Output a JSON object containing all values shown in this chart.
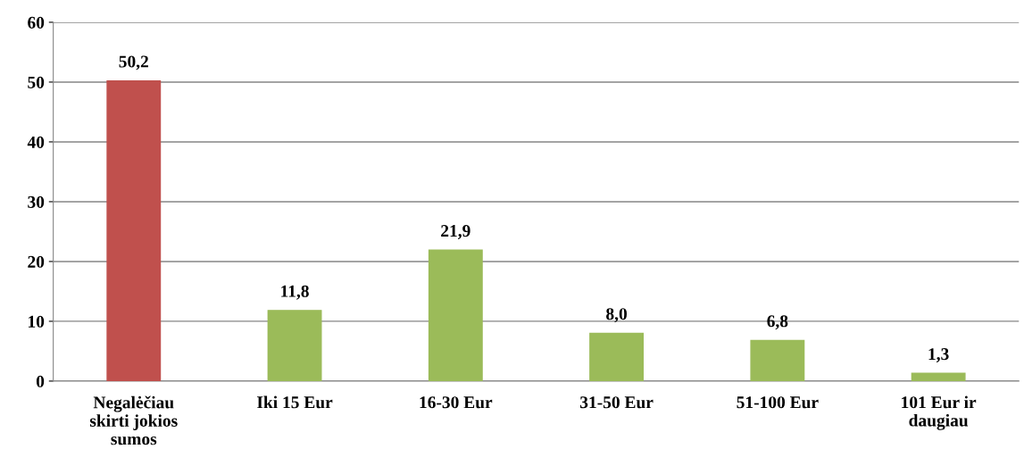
{
  "chart_data": {
    "type": "bar",
    "categories": [
      "Negalėčiau skirti jokios sumos",
      "Iki 15 Eur",
      "16-30 Eur",
      "31-50 Eur",
      "51-100 Eur",
      "101 Eur ir daugiau"
    ],
    "values": [
      50.2,
      11.8,
      21.9,
      8.0,
      6.8,
      1.3
    ],
    "colors": [
      "#c0504d",
      "#9bbb59",
      "#9bbb59",
      "#9bbb59",
      "#9bbb59",
      "#9bbb59"
    ],
    "value_labels": [
      "50,2",
      "11,8",
      "21,9",
      "8,0",
      "6,8",
      "1,3"
    ],
    "ylim": [
      0,
      60
    ],
    "yticks": [
      0,
      10,
      20,
      30,
      40,
      50,
      60
    ],
    "grid": "y",
    "legend": false
  }
}
